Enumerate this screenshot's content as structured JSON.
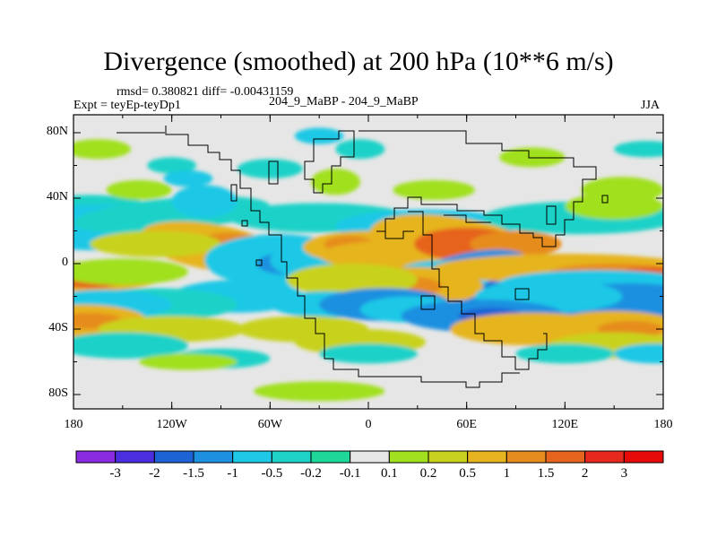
{
  "title": "Divergence (smoothed) at 200 hPa (10**6 m/s)",
  "stats_line": "rmsd= 0.380821 diff= -0.00431159",
  "experiment_label": "Expt = teyEp-teyDp1",
  "case_label": "204_9_MaBP - 204_9_MaBP",
  "season": "JJA",
  "lat_ticks": [
    "80N",
    "40N",
    "0",
    "40S",
    "80S"
  ],
  "lon_ticks": [
    "180",
    "120W",
    "60W",
    "0",
    "60E",
    "120E",
    "180"
  ],
  "colorbar": {
    "labels": [
      "-3",
      "-2",
      "-1.5",
      "-1",
      "-0.5",
      "-0.2",
      "-0.1",
      "0.1",
      "0.2",
      "0.5",
      "1",
      "1.5",
      "2",
      "3"
    ],
    "colors": [
      "#8a2be2",
      "#4b2ee0",
      "#1e63d6",
      "#1e90e0",
      "#1ec8e6",
      "#1ed2c8",
      "#1ed89a",
      "#e6e6e6",
      "#a0e01e",
      "#c8d21e",
      "#e6b41e",
      "#e68c1e",
      "#e6641e",
      "#e6281e",
      "#e60a0a"
    ]
  },
  "colors": {
    "background_field": "#e6e6e6",
    "coastline": "#000000"
  }
}
